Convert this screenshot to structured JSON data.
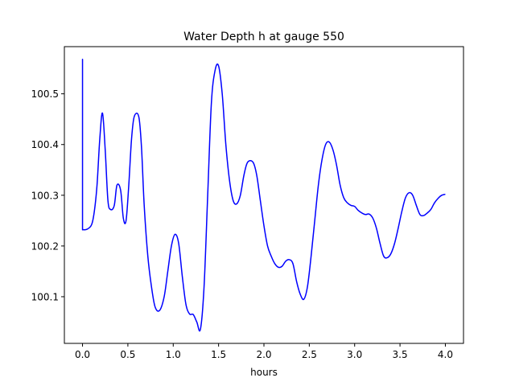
{
  "chart_data": {
    "type": "line",
    "title": "Water Depth h at gauge 550",
    "xlabel": "hours",
    "ylabel": "",
    "xlim": [
      -0.2,
      4.2
    ],
    "ylim": [
      100.008,
      100.593
    ],
    "xticks": [
      0.0,
      0.5,
      1.0,
      1.5,
      2.0,
      2.5,
      3.0,
      3.5,
      4.0
    ],
    "xtick_labels": [
      "0.0",
      "0.5",
      "1.0",
      "1.5",
      "2.0",
      "2.5",
      "3.0",
      "3.5",
      "4.0"
    ],
    "yticks": [
      100.1,
      100.2,
      100.3,
      100.4,
      100.5
    ],
    "ytick_labels": [
      "100.1",
      "100.2",
      "100.3",
      "100.4",
      "100.5"
    ],
    "grid": false,
    "series": [
      {
        "color": "#0000ff",
        "x": [
          0.0,
          0.0,
          0.0,
          0.05,
          0.1,
          0.13,
          0.16,
          0.19,
          0.22,
          0.25,
          0.28,
          0.31,
          0.35,
          0.38,
          0.42,
          0.45,
          0.48,
          0.51,
          0.54,
          0.57,
          0.62,
          0.65,
          0.68,
          0.72,
          0.76,
          0.8,
          0.85,
          0.9,
          0.94,
          0.98,
          1.02,
          1.06,
          1.1,
          1.14,
          1.18,
          1.22,
          1.26,
          1.3,
          1.34,
          1.38,
          1.42,
          1.46,
          1.5,
          1.54,
          1.58,
          1.62,
          1.66,
          1.7,
          1.74,
          1.78,
          1.82,
          1.88,
          1.92,
          1.96,
          2.0,
          2.04,
          2.08,
          2.12,
          2.16,
          2.2,
          2.24,
          2.28,
          2.32,
          2.36,
          2.4,
          2.44,
          2.48,
          2.52,
          2.56,
          2.6,
          2.64,
          2.68,
          2.72,
          2.76,
          2.8,
          2.84,
          2.88,
          2.92,
          2.96,
          3.0,
          3.04,
          3.08,
          3.12,
          3.16,
          3.2,
          3.24,
          3.28,
          3.32,
          3.36,
          3.4,
          3.44,
          3.48,
          3.52,
          3.56,
          3.6,
          3.64,
          3.68,
          3.72,
          3.76,
          3.8,
          3.84,
          3.88,
          3.92,
          3.96,
          4.0
        ],
        "y": [
          100.232,
          100.568,
          100.232,
          100.233,
          100.242,
          100.268,
          100.32,
          100.41,
          100.462,
          100.39,
          100.29,
          100.272,
          100.28,
          100.32,
          100.31,
          100.255,
          100.25,
          100.32,
          100.41,
          100.455,
          100.455,
          100.395,
          100.28,
          100.18,
          100.12,
          100.08,
          100.073,
          100.1,
          100.15,
          100.2,
          100.223,
          100.205,
          100.14,
          100.085,
          100.066,
          100.065,
          100.05,
          100.036,
          100.12,
          100.3,
          100.48,
          100.545,
          100.555,
          100.5,
          100.4,
          100.33,
          100.29,
          100.283,
          100.3,
          100.34,
          100.365,
          100.365,
          100.34,
          100.29,
          100.24,
          100.2,
          100.18,
          100.165,
          100.158,
          100.16,
          100.17,
          100.173,
          100.165,
          100.13,
          100.105,
          100.095,
          100.12,
          100.18,
          100.25,
          100.32,
          100.37,
          100.4,
          100.405,
          100.39,
          100.36,
          100.32,
          100.295,
          100.285,
          100.28,
          100.278,
          100.27,
          100.265,
          100.262,
          100.263,
          100.255,
          100.235,
          100.205,
          100.18,
          100.177,
          100.185,
          100.205,
          100.235,
          100.268,
          100.295,
          100.305,
          100.3,
          100.28,
          100.262,
          100.26,
          100.265,
          100.272,
          100.285,
          100.294,
          100.3,
          100.302
        ]
      }
    ]
  }
}
